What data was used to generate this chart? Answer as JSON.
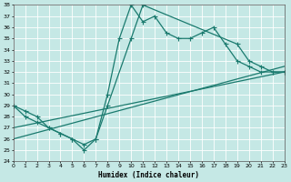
{
  "xlabel": "Humidex (Indice chaleur)",
  "background_color": "#c5e8e5",
  "grid_color": "#aed8d4",
  "line_color": "#1a7a6e",
  "ylim": [
    24,
    38
  ],
  "xlim": [
    0,
    23
  ],
  "yticks": [
    24,
    25,
    26,
    27,
    28,
    29,
    30,
    31,
    32,
    33,
    34,
    35,
    36,
    37,
    38
  ],
  "xticks": [
    0,
    1,
    2,
    3,
    4,
    5,
    6,
    7,
    8,
    9,
    10,
    11,
    12,
    13,
    14,
    15,
    16,
    17,
    18,
    19,
    20,
    21,
    22,
    23
  ],
  "series": [
    {
      "x": [
        0,
        1,
        2,
        3,
        4,
        5,
        6,
        7,
        8,
        9,
        10,
        11,
        12,
        13,
        14,
        15,
        16,
        17,
        18,
        19,
        20,
        21,
        22,
        23
      ],
      "y": [
        29,
        28.5,
        28,
        27,
        26.5,
        26,
        25,
        26,
        30,
        35,
        38,
        36.5,
        37,
        35.5,
        35,
        35,
        35.5,
        36,
        34.5,
        33,
        32.5,
        32,
        32,
        32
      ]
    },
    {
      "x": [
        0,
        1,
        2,
        3,
        4,
        5,
        6,
        7,
        8,
        10,
        11,
        19,
        20,
        21,
        22,
        23
      ],
      "y": [
        29,
        28,
        27.5,
        27,
        26.5,
        26,
        25.5,
        26,
        29,
        35,
        38,
        34.5,
        33,
        32.5,
        32,
        32
      ]
    },
    {
      "x": [
        0,
        23
      ],
      "y": [
        26,
        32.5
      ]
    },
    {
      "x": [
        0,
        23
      ],
      "y": [
        27,
        32
      ]
    }
  ]
}
